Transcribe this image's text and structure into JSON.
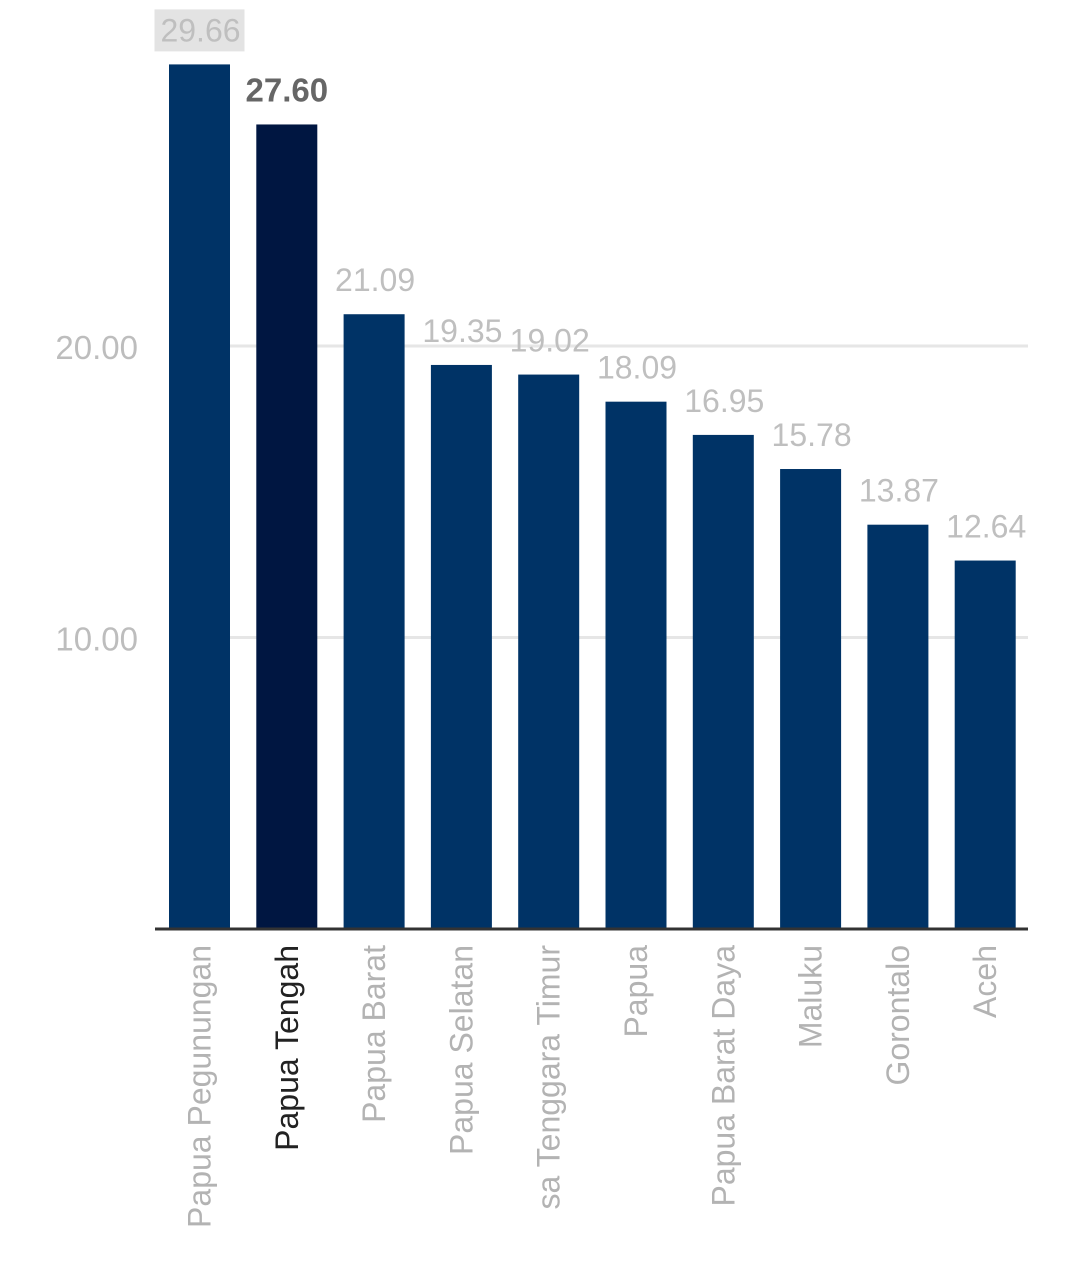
{
  "chart_data": {
    "type": "bar",
    "categories": [
      "Papua Pegunungan",
      "Papua Tengah",
      "Papua Barat",
      "Papua Selatan",
      "Nusa Tenggara Timur",
      "Papua",
      "Papua Barat Daya",
      "Maluku",
      "Gorontalo",
      "Aceh"
    ],
    "category_labels_visible": [
      "Papua Pegunungan",
      "Papua Tengah",
      "Papua Barat",
      "Papua Selatan",
      "sa Tenggara Timur",
      "Papua",
      "Papua Barat Daya",
      "Maluku",
      "Gorontalo",
      "Aceh"
    ],
    "values": [
      29.66,
      27.6,
      21.09,
      19.35,
      19.02,
      18.09,
      16.95,
      15.78,
      13.87,
      12.64
    ],
    "value_labels": [
      "29.66",
      "27.60",
      "21.09",
      "19.35",
      "19.02",
      "18.09",
      "16.95",
      "15.78",
      "13.87",
      "12.64"
    ],
    "highlighted_index": 1,
    "hovered_label_index": 0,
    "yticks": [
      10,
      20
    ],
    "ytick_labels": [
      "10.00",
      "20.00"
    ],
    "ylim": [
      0,
      31
    ],
    "grid": true,
    "title": "",
    "xlabel": "",
    "ylabel": "",
    "colors": {
      "bar": "#003366",
      "bar_highlight": "#001641",
      "value_label": "#bfbfbf",
      "value_label_highlight": "#666666",
      "tick_label": "#bdbdbd",
      "category_label": "#b3b3b3",
      "category_label_highlight": "#222222",
      "grid": "#e6e6e6",
      "axis": "#333333",
      "label_hover_bg": "#e3e3e3"
    }
  }
}
